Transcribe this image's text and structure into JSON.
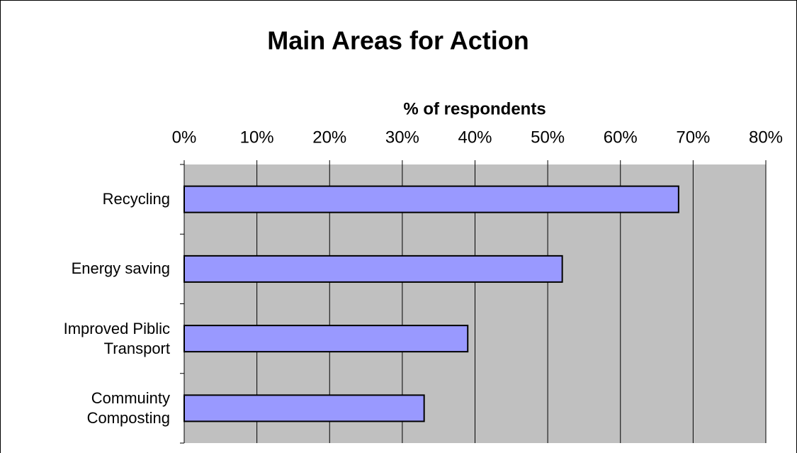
{
  "chart_data": {
    "type": "bar",
    "orientation": "horizontal",
    "title": "Main Areas for Action",
    "x_label": "% of respondents",
    "categories": [
      "Recycling",
      "Energy saving",
      "Improved Piblic Transport",
      "Commuinty Composting"
    ],
    "values": [
      68,
      52,
      39,
      33
    ],
    "color": "#9999ff",
    "xlim": [
      0,
      80
    ],
    "xticks": [
      {
        "value": 0,
        "label": "0%"
      },
      {
        "value": 10,
        "label": "10%"
      },
      {
        "value": 20,
        "label": "20%"
      },
      {
        "value": 30,
        "label": "30%"
      },
      {
        "value": 40,
        "label": "40%"
      },
      {
        "value": 50,
        "label": "50%"
      },
      {
        "value": 60,
        "label": "60%"
      },
      {
        "value": 70,
        "label": "70%"
      },
      {
        "value": 80,
        "label": "80%"
      }
    ],
    "grid": true
  }
}
